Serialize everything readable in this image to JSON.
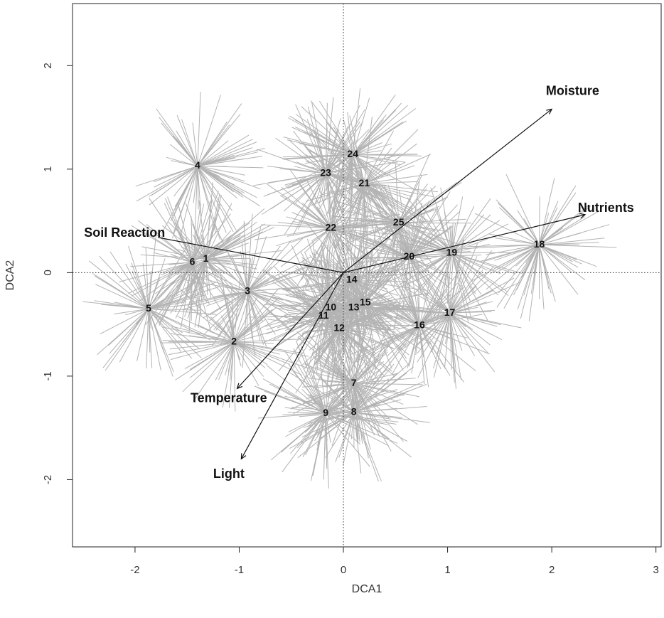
{
  "chart_data": {
    "type": "scatter",
    "title": "",
    "xlabel": "DCA1",
    "ylabel": "DCA2",
    "xlim": [
      -2.6,
      3.05
    ],
    "ylim": [
      -2.65,
      2.6
    ],
    "xticks": [
      {
        "value": -2,
        "label": "-2"
      },
      {
        "value": -1,
        "label": "-1"
      },
      {
        "value": 0,
        "label": "0"
      },
      {
        "value": 1,
        "label": "1"
      },
      {
        "value": 2,
        "label": "2"
      },
      {
        "value": 3,
        "label": "3"
      }
    ],
    "yticks": [
      {
        "value": -2,
        "label": "-2"
      },
      {
        "value": -1,
        "label": "-1"
      },
      {
        "value": 0,
        "label": "0"
      },
      {
        "value": 1,
        "label": "1"
      },
      {
        "value": 2,
        "label": "2"
      }
    ],
    "grid": false,
    "reference_lines": {
      "x": 0,
      "y": 0,
      "style": "dotted"
    },
    "spider_color": "#b3b3b3",
    "site_centroids": [
      {
        "label": "1",
        "x": -1.32,
        "y": 0.13
      },
      {
        "label": "2",
        "x": -1.05,
        "y": -0.67
      },
      {
        "label": "3",
        "x": -0.92,
        "y": -0.18
      },
      {
        "label": "4",
        "x": -1.4,
        "y": 1.03
      },
      {
        "label": "5",
        "x": -1.87,
        "y": -0.35
      },
      {
        "label": "6",
        "x": -1.45,
        "y": 0.1
      },
      {
        "label": "7",
        "x": 0.1,
        "y": -1.07
      },
      {
        "label": "8",
        "x": 0.1,
        "y": -1.35
      },
      {
        "label": "9",
        "x": -0.17,
        "y": -1.36
      },
      {
        "label": "10",
        "x": -0.12,
        "y": -0.34
      },
      {
        "label": "11",
        "x": -0.19,
        "y": -0.42
      },
      {
        "label": "12",
        "x": -0.04,
        "y": -0.54
      },
      {
        "label": "13",
        "x": 0.1,
        "y": -0.34
      },
      {
        "label": "14",
        "x": 0.08,
        "y": -0.07
      },
      {
        "label": "15",
        "x": 0.21,
        "y": -0.29
      },
      {
        "label": "16",
        "x": 0.73,
        "y": -0.51
      },
      {
        "label": "17",
        "x": 1.02,
        "y": -0.39
      },
      {
        "label": "18",
        "x": 1.88,
        "y": 0.27
      },
      {
        "label": "19",
        "x": 1.04,
        "y": 0.19
      },
      {
        "label": "20",
        "x": 0.63,
        "y": 0.15
      },
      {
        "label": "21",
        "x": 0.2,
        "y": 0.86
      },
      {
        "label": "22",
        "x": -0.12,
        "y": 0.43
      },
      {
        "label": "23",
        "x": -0.17,
        "y": 0.96
      },
      {
        "label": "24",
        "x": 0.09,
        "y": 1.14
      },
      {
        "label": "25",
        "x": 0.53,
        "y": 0.48
      }
    ],
    "vectors": [
      {
        "name": "Moisture",
        "x": 2.0,
        "y": 1.58,
        "label_x": 2.2,
        "label_y": 1.75,
        "arrowhead": true
      },
      {
        "name": "Nutrients",
        "x": 2.32,
        "y": 0.56,
        "label_x": 2.52,
        "label_y": 0.62,
        "arrowhead": true
      },
      {
        "name": "Soil Reaction",
        "x": -1.78,
        "y": 0.34,
        "label_x": -2.1,
        "label_y": 0.38,
        "arrowhead": false
      },
      {
        "name": "Temperature",
        "x": -1.02,
        "y": -1.12,
        "label_x": -1.1,
        "label_y": -1.22,
        "arrowhead": true
      },
      {
        "name": "Light",
        "x": -0.98,
        "y": -1.8,
        "label_x": -1.1,
        "label_y": -1.95,
        "arrowhead": true
      }
    ]
  }
}
